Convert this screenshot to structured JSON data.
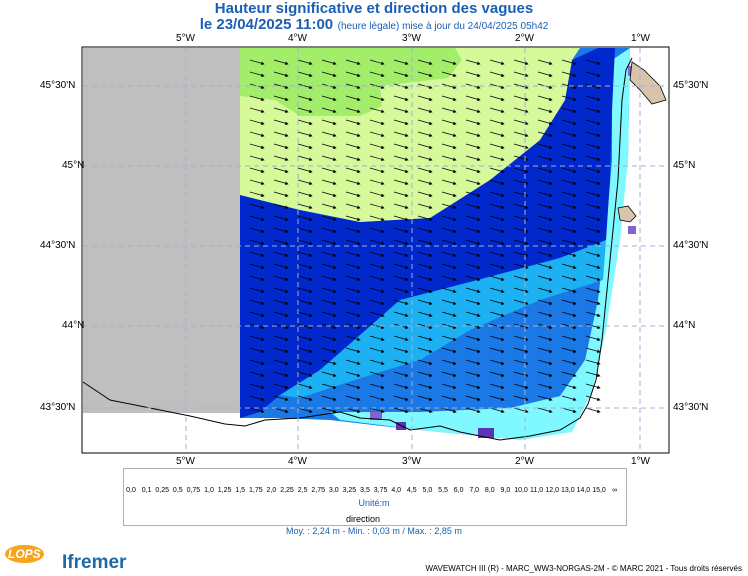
{
  "title": "Hauteur significative et direction des vagues",
  "subtitle": {
    "date": "le 23/04/2025 11:00",
    "note": "(heure légale) mise à jour du 24/04/2025 05h42"
  },
  "axes": {
    "lon_labels": [
      "5°W",
      "4°W",
      "3°W",
      "2°W",
      "1°W"
    ],
    "lat_labels": [
      "45°30'N",
      "45°N",
      "44°30'N",
      "44°N",
      "43°30'N"
    ]
  },
  "legend": {
    "values": [
      "0,0",
      "0,1",
      "0,25",
      "0,5",
      "0,75",
      "1,0",
      "1,25",
      "1,5",
      "1,75",
      "2,0",
      "2,25",
      "2,5",
      "2,75",
      "3,0",
      "3,25",
      "3,5",
      "3,75",
      "4,0",
      "4,5",
      "5,0",
      "5,5",
      "6,0",
      "7,0",
      "8,0",
      "9,0",
      "10,0",
      "11,0",
      "12,0",
      "13,0",
      "14,0",
      "15,0",
      "∞"
    ],
    "colors": [
      "#e9dccd",
      "#d8c3ad",
      "#c4aac3",
      "#a98fd6",
      "#8463d0",
      "#5b33b6",
      "#7ff8ff",
      "#53d5f8",
      "#1cb1f3",
      "#1a79e6",
      "#0028cc",
      "#c8f09a",
      "#a5f05f",
      "#66ef4d",
      "#26d626",
      "#14c21e",
      "#119e23",
      "#fff12b",
      "#f6c918",
      "#f3a414",
      "#f07e12",
      "#ea4b16",
      "#f4a8a4",
      "#e77272",
      "#cf3a3a",
      "#b01e1e",
      "#8a1515",
      "#6e0c0c",
      "#8a1a4e",
      "#a01063",
      "#7a0a4f"
    ],
    "unit": "Unité:m",
    "direction_label": "direction"
  },
  "stats": "Moy. : 2,24 m   -   Min. : 0,03 m / Max. : 2,85 m",
  "footer": "WAVEWATCH III (R) - MARC_WW3-NORGAS-2M - © MARC 2021 - Tous droits réservés",
  "logos": {
    "lops": "LOPS",
    "ifremer": "Ifremer"
  }
}
